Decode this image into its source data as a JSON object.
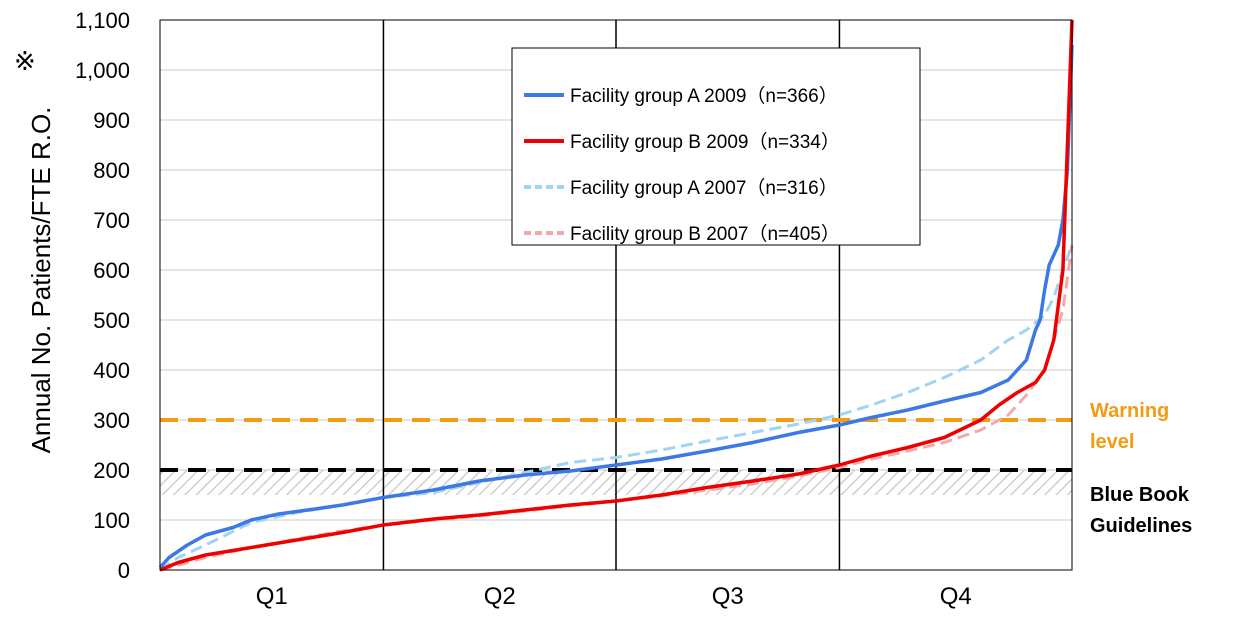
{
  "chart_data": {
    "type": "line",
    "title": "",
    "xlabel": "",
    "ylabel": "Annual No. Patients/FTE R.O.",
    "ylabel_footnote": "※",
    "ylim": [
      0,
      1100
    ],
    "yticks": [
      0,
      100,
      200,
      300,
      400,
      500,
      600,
      700,
      800,
      900,
      1000,
      1100
    ],
    "ytick_labels": [
      "0",
      "100",
      "200",
      "300",
      "400",
      "500",
      "600",
      "700",
      "800",
      "900",
      "1,000",
      "1,100"
    ],
    "xlim": [
      0,
      1
    ],
    "categories": [
      "Q1",
      "Q2",
      "Q3",
      "Q4"
    ],
    "quartile_boundaries": [
      0.245,
      0.5,
      0.745
    ],
    "grid": "horizontal",
    "legend_position": "upper-center",
    "series": [
      {
        "name": "Facility group A 2009（n=366）",
        "color": "#3c78e6",
        "style": "solid",
        "x": [
          0,
          0.01,
          0.03,
          0.05,
          0.08,
          0.1,
          0.13,
          0.17,
          0.2,
          0.245,
          0.3,
          0.35,
          0.4,
          0.45,
          0.5,
          0.55,
          0.6,
          0.65,
          0.7,
          0.745,
          0.78,
          0.82,
          0.86,
          0.9,
          0.93,
          0.95,
          0.96,
          0.965,
          0.97,
          0.975,
          0.98,
          0.985,
          0.99,
          0.995,
          1.0
        ],
        "y": [
          5,
          25,
          50,
          70,
          85,
          100,
          112,
          122,
          130,
          145,
          160,
          178,
          190,
          198,
          210,
          222,
          238,
          255,
          275,
          290,
          305,
          320,
          338,
          355,
          380,
          420,
          480,
          500,
          560,
          610,
          630,
          650,
          700,
          800,
          1050
        ]
      },
      {
        "name": "Facility group B 2009（n=334）",
        "color": "#ee0000",
        "style": "solid",
        "x": [
          0,
          0.02,
          0.05,
          0.1,
          0.15,
          0.2,
          0.245,
          0.3,
          0.35,
          0.4,
          0.45,
          0.5,
          0.55,
          0.6,
          0.65,
          0.7,
          0.745,
          0.78,
          0.82,
          0.86,
          0.9,
          0.92,
          0.94,
          0.96,
          0.97,
          0.98,
          0.99,
          1.0
        ],
        "y": [
          0,
          15,
          30,
          45,
          60,
          75,
          90,
          102,
          110,
          120,
          130,
          138,
          150,
          165,
          178,
          192,
          210,
          228,
          245,
          265,
          300,
          330,
          355,
          375,
          400,
          460,
          600,
          1100
        ]
      },
      {
        "name": "Facility group A 2007（n=316）",
        "color": "#9fd4f2",
        "style": "dashed",
        "x": [
          0,
          0.02,
          0.05,
          0.1,
          0.15,
          0.2,
          0.245,
          0.3,
          0.35,
          0.4,
          0.45,
          0.5,
          0.55,
          0.6,
          0.65,
          0.7,
          0.745,
          0.78,
          0.82,
          0.86,
          0.9,
          0.93,
          0.95,
          0.97,
          0.98,
          0.99,
          1.0
        ],
        "y": [
          0,
          25,
          50,
          95,
          115,
          130,
          145,
          155,
          175,
          195,
          215,
          225,
          240,
          258,
          275,
          292,
          310,
          330,
          355,
          385,
          420,
          460,
          480,
          510,
          545,
          600,
          650
        ]
      },
      {
        "name": "Facility group B 2007（n=405）",
        "color": "#f4a8a8",
        "style": "dashed",
        "x": [
          0,
          0.02,
          0.05,
          0.1,
          0.15,
          0.2,
          0.245,
          0.3,
          0.35,
          0.4,
          0.45,
          0.5,
          0.55,
          0.6,
          0.65,
          0.7,
          0.745,
          0.78,
          0.82,
          0.86,
          0.9,
          0.93,
          0.95,
          0.97,
          0.98,
          0.99,
          1.0
        ],
        "y": [
          0,
          10,
          25,
          45,
          62,
          78,
          90,
          100,
          108,
          118,
          128,
          138,
          148,
          160,
          172,
          188,
          205,
          222,
          238,
          255,
          280,
          310,
          350,
          400,
          460,
          520,
          650
        ]
      }
    ],
    "reference_lines": [
      {
        "label": "Warning level",
        "label_lines": [
          "Warning",
          "level"
        ],
        "y": 300,
        "color": "#f39c12",
        "label_color": "#f39c12"
      },
      {
        "label": "Blue Book Guidelines",
        "label_lines": [
          "Blue Book",
          "Guidelines"
        ],
        "y": 200,
        "color": "#000000",
        "label_color": "#000000"
      }
    ],
    "shaded_band": {
      "y_from": 150,
      "y_to": 200,
      "pattern": "diagonal-hatch",
      "color": "#cccccc"
    }
  }
}
